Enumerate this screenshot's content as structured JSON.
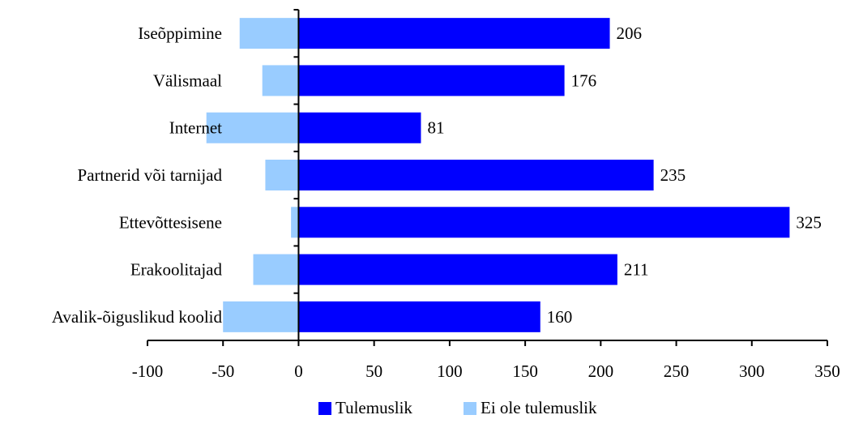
{
  "chart_data": {
    "type": "bar",
    "orientation": "horizontal",
    "title": "",
    "xlabel": "",
    "ylabel": "",
    "xlim": [
      -100,
      350
    ],
    "x_ticks": [
      "-100",
      "-50",
      "0",
      "50",
      "100",
      "150",
      "200",
      "250",
      "300",
      "350"
    ],
    "grid": false,
    "legend_position": "bottom",
    "categories": [
      "Iseõppimine",
      "Välismaal",
      "Internet",
      "Partnerid või tarnijad",
      "Ettevõttesisene",
      "Erakoolitajad",
      "Avalik-õiguslikud koolid"
    ],
    "series": [
      {
        "name": "Tulemuslik",
        "color": "#0000ff",
        "values": [
          206,
          176,
          81,
          235,
          325,
          211,
          160
        ],
        "labels": [
          "206",
          "176",
          "81",
          "235",
          "325",
          "211",
          "160"
        ]
      },
      {
        "name": "Ei ole tulemuslik",
        "color": "#99ccff",
        "values": [
          -39,
          -24,
          -61,
          -22,
          -5,
          -30,
          -50
        ]
      }
    ]
  }
}
